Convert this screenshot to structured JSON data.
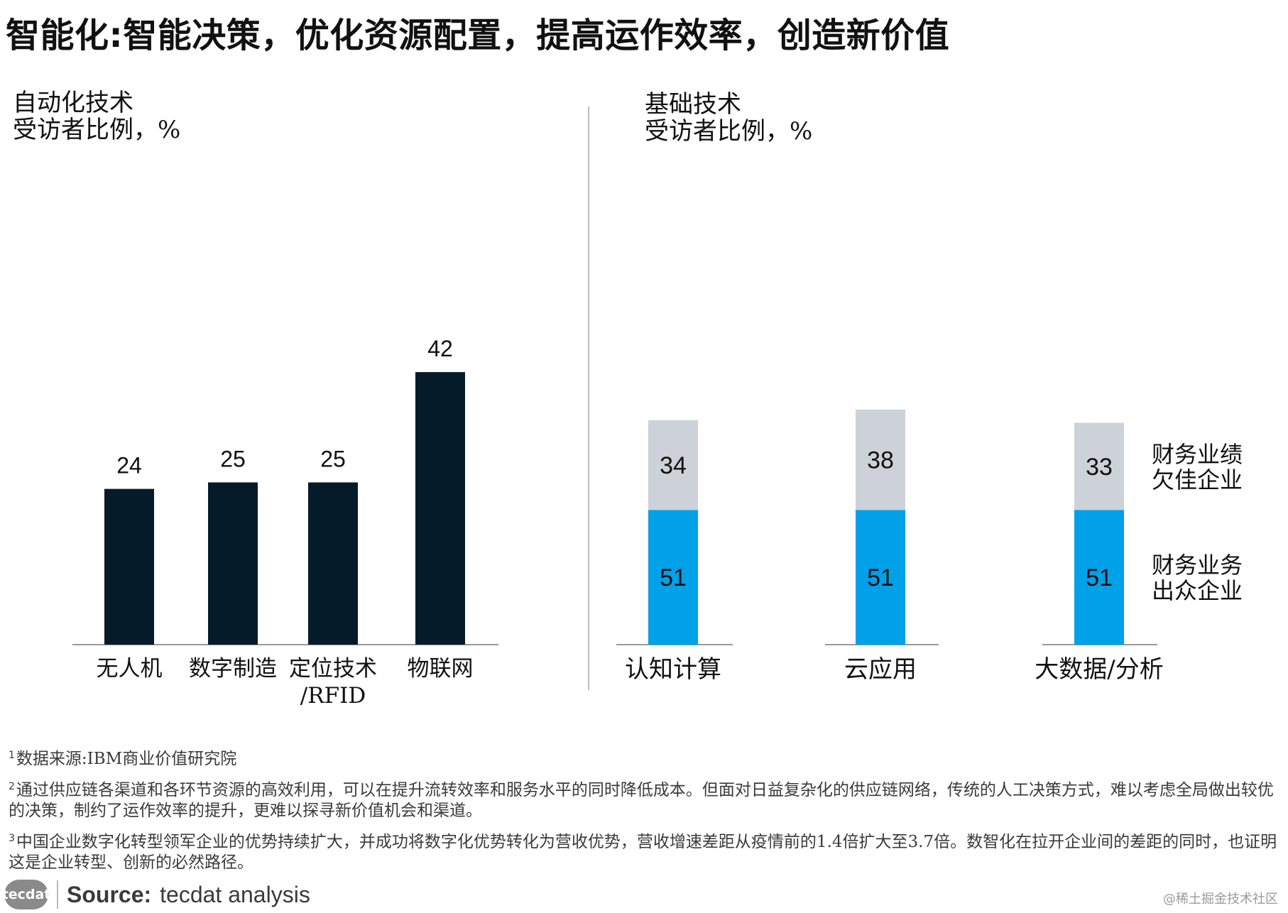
{
  "title": "智能化:智能决策，优化资源配置，提高运作效率，创造新价值",
  "colors": {
    "bar_dark": "#061b2a",
    "bar_blue": "#00a1e8",
    "bar_gray": "#ccd2d8",
    "axis": "#9a9a9a"
  },
  "chart_data": [
    {
      "type": "bar",
      "title": "自动化技术",
      "subtitle": "受访者比例，%",
      "categories": [
        "无人机",
        "数字制造",
        "定位技术\n/RFID",
        "物联网"
      ],
      "values": [
        24,
        25,
        25,
        42
      ],
      "ylim": [
        0,
        45
      ],
      "grid": false
    },
    {
      "type": "bar",
      "stacked": true,
      "title": "基础技术",
      "subtitle": "受访者比例，%",
      "categories": [
        "认知计算",
        "云应用",
        "大数据/分析"
      ],
      "series": [
        {
          "name": "财务业务\n出众企业",
          "values": [
            51,
            51,
            51
          ],
          "color": "#00a1e8"
        },
        {
          "name": "财务业绩\n欠佳企业",
          "values": [
            34,
            38,
            33
          ],
          "color": "#ccd2d8"
        }
      ],
      "ylim": [
        0,
        95
      ],
      "grid": false,
      "legend_placement": "right"
    }
  ],
  "footnotes": [
    {
      "num": "1",
      "text": "数据来源:IBM商业价值研究院"
    },
    {
      "num": "2",
      "text": "通过供应链各渠道和各环节资源的高效利用，可以在提升流转效率和服务水平的同时降低成本。但面对日益复杂化的供应链网络，传统的人工决策方式，难以考虑全局做出较优的决策，制约了运作效率的提升，更难以探寻新价值机会和渠道。"
    },
    {
      "num": "3",
      "text": "中国企业数字化转型领军企业的优势持续扩大，并成功将数字化优势转化为营收优势，营收增速差距从疫情前的1.4倍扩大至3.7倍。数智化在拉开企业间的差距的同时，也证明这是企业转型、创新的必然路径。"
    }
  ],
  "source": {
    "logo_text": "tecdat",
    "label": "Source:",
    "text": "tecdat analysis"
  },
  "watermark": "@稀土掘金技术社区"
}
